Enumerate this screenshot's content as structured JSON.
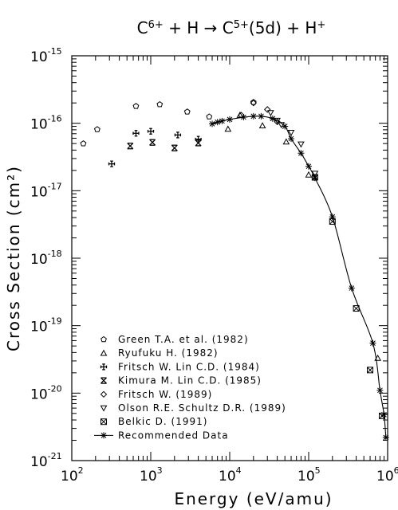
{
  "chart_data": {
    "type": "scatter",
    "title": {
      "parts": [
        {
          "text": "C",
          "sup": "6+"
        },
        {
          "text": " + H → C",
          "sup": "5+"
        },
        {
          "text": "(5d) + H",
          "sup": "+"
        }
      ]
    },
    "xlabel": "Energy (eV/amu)",
    "ylabel": "Cross Section (cm²)",
    "x_scale": "log",
    "y_scale": "log",
    "xlim": [
      100,
      1000000
    ],
    "ylim": [
      1e-21,
      1e-15
    ],
    "x_tick_labels": [
      {
        "value": 100,
        "base": "10",
        "exp": "2"
      },
      {
        "value": 1000,
        "base": "10",
        "exp": "3"
      },
      {
        "value": 10000,
        "base": "10",
        "exp": "4"
      },
      {
        "value": 100000,
        "base": "10",
        "exp": "5"
      },
      {
        "value": 1000000,
        "base": "10",
        "exp": "6"
      }
    ],
    "y_tick_labels": [
      {
        "value": 1e-15,
        "base": "10",
        "exp": "-15"
      },
      {
        "value": 1e-16,
        "base": "10",
        "exp": "-16"
      },
      {
        "value": 1e-17,
        "base": "10",
        "exp": "-17"
      },
      {
        "value": 1e-18,
        "base": "10",
        "exp": "-18"
      },
      {
        "value": 1e-19,
        "base": "10",
        "exp": "-19"
      },
      {
        "value": 1e-20,
        "base": "10",
        "exp": "-20"
      },
      {
        "value": 1e-21,
        "base": "10",
        "exp": "-21"
      }
    ],
    "grid": false,
    "legend_position": "bottom-left",
    "series": [
      {
        "name": "Green T.A. et al. (1982)",
        "marker": "pentagon",
        "points": [
          [
            140,
            5e-17
          ],
          [
            210,
            8.1e-17
          ],
          [
            650,
            1.79e-16
          ],
          [
            1300,
            1.9e-16
          ],
          [
            2900,
            1.48e-16
          ],
          [
            5500,
            1.25e-16
          ],
          [
            20000,
            2.05e-16
          ]
        ]
      },
      {
        "name": "Ryufuku H. (1982)",
        "marker": "triangle-up",
        "points": [
          [
            9500,
            8.2e-17
          ],
          [
            13500,
            1.32e-16
          ],
          [
            26000,
            9.2e-17
          ],
          [
            52000,
            5.3e-17
          ],
          [
            100000,
            1.72e-17
          ],
          [
            750000,
            3.3e-20
          ]
        ]
      },
      {
        "name": "Fritsch W. Lin C.D. (1984)",
        "marker": "cross",
        "points": [
          [
            320,
            2.5e-17
          ],
          [
            650,
            7.1e-17
          ],
          [
            1000,
            7.6e-17
          ],
          [
            2200,
            6.7e-17
          ],
          [
            4000,
            5.8e-17
          ]
        ]
      },
      {
        "name": "Kimura M. Lin C.D. (1985)",
        "marker": "x-bar",
        "points": [
          [
            550,
            4.6e-17
          ],
          [
            1050,
            5.2e-17
          ],
          [
            2000,
            4.3e-17
          ],
          [
            4000,
            5.1e-17
          ]
        ]
      },
      {
        "name": "Fritsch W. (1989)",
        "marker": "diamond",
        "points": [
          [
            14000,
            1.32e-16
          ],
          [
            20000,
            2e-16
          ],
          [
            30000,
            1.6e-16
          ],
          [
            40000,
            1.05e-16
          ]
        ]
      },
      {
        "name": "Olson R.E. Schultz D.R. (1989)",
        "marker": "triangle-down",
        "points": [
          [
            33000,
            1.43e-16
          ],
          [
            40000,
            1.1e-16
          ],
          [
            45000,
            9.5e-17
          ],
          [
            60000,
            7.3e-17
          ],
          [
            80000,
            4.9e-17
          ],
          [
            120000,
            1.8e-17
          ]
        ]
      },
      {
        "name": "Belkic D. (1991)",
        "marker": "square-x",
        "points": [
          [
            120000,
            1.58e-17
          ],
          [
            200000,
            3.5e-18
          ],
          [
            400000,
            1.8e-19
          ],
          [
            600000,
            2.2e-20
          ],
          [
            850000,
            4.6e-21
          ]
        ]
      },
      {
        "name": "Recommended Data",
        "marker": "asterisk",
        "line": true,
        "points": [
          [
            6000,
            9.8e-17
          ],
          [
            7000,
            1.04e-16
          ],
          [
            8000,
            1.08e-16
          ],
          [
            10000,
            1.14e-16
          ],
          [
            15000,
            1.23e-16
          ],
          [
            20000,
            1.27e-16
          ],
          [
            25000,
            1.27e-16
          ],
          [
            35000,
            1.17e-16
          ],
          [
            50000,
            9e-17
          ],
          [
            60000,
            5.9e-17
          ],
          [
            80000,
            3.6e-17
          ],
          [
            100000,
            2.3e-17
          ],
          [
            120000,
            1.55e-17
          ],
          [
            200000,
            4.1e-18
          ],
          [
            350000,
            3.6e-19
          ],
          [
            650000,
            5.5e-20
          ],
          [
            800000,
            1.1e-20
          ],
          [
            900000,
            4.8e-21
          ],
          [
            950000,
            2.2e-21
          ]
        ]
      }
    ]
  }
}
